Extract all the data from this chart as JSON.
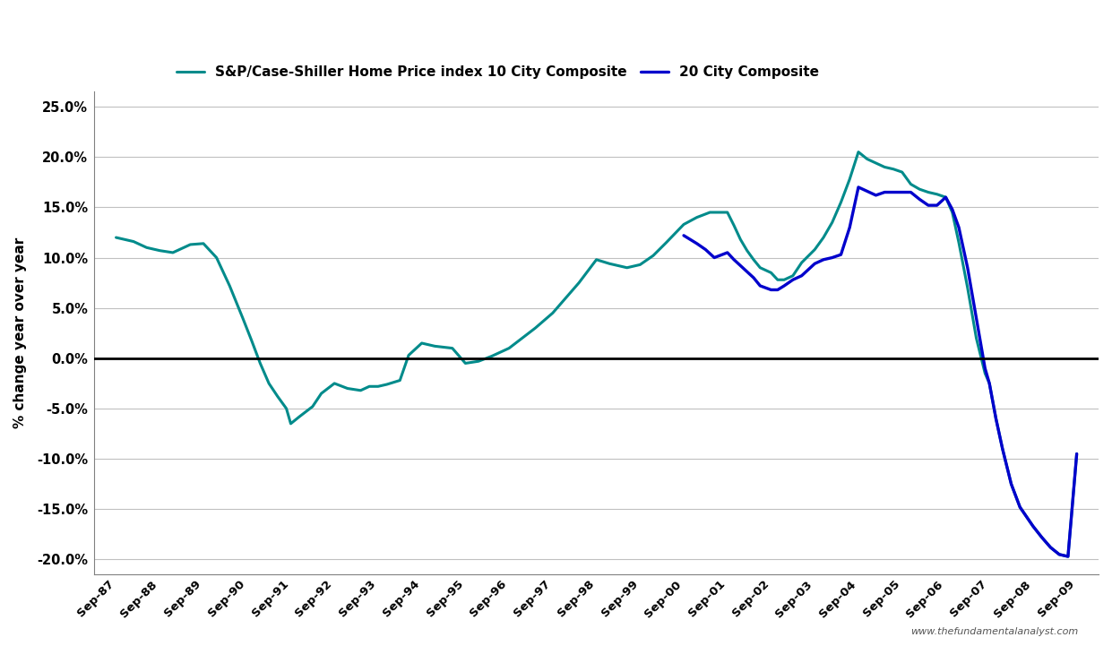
{
  "legend_label_10": "S&P/Case-Shiller Home Price index 10 City Composite",
  "legend_label_20": "20 City Composite",
  "ylabel": "% change year over year",
  "watermark": "www.thefundamentalanalyst.com",
  "color_10city": "#008B8B",
  "color_20city": "#0000CC",
  "color_zeroline": "#000000",
  "background_color": "#FFFFFF",
  "ylim": [
    -0.215,
    0.265
  ],
  "yticks": [
    -0.2,
    -0.15,
    -0.1,
    -0.05,
    0.0,
    0.05,
    0.1,
    0.15,
    0.2,
    0.25
  ],
  "x_labels": [
    "Sep-87",
    "Sep-88",
    "Sep-89",
    "Sep-90",
    "Sep-91",
    "Sep-92",
    "Sep-93",
    "Sep-94",
    "Sep-95",
    "Sep-96",
    "Sep-97",
    "Sep-98",
    "Sep-99",
    "Sep-00",
    "Sep-01",
    "Sep-02",
    "Sep-03",
    "Sep-04",
    "Sep-05",
    "Sep-06",
    "Sep-07",
    "Sep-08",
    "Sep-09"
  ],
  "x10": [
    0,
    0.4,
    0.7,
    1.0,
    1.3,
    1.7,
    2.0,
    2.3,
    2.6,
    2.9,
    3.1,
    3.3,
    3.5,
    3.7,
    3.9,
    4.0,
    4.2,
    4.5,
    4.7,
    5.0,
    5.3,
    5.6,
    5.8,
    6.0,
    6.2,
    6.5,
    6.7,
    7.0,
    7.3,
    7.7,
    8.0,
    8.3,
    8.6,
    9.0,
    9.3,
    9.6,
    10.0,
    10.3,
    10.6,
    11.0,
    11.3,
    11.7,
    12.0,
    12.3,
    12.6,
    13.0,
    13.3,
    13.6,
    14.0,
    14.15,
    14.3,
    14.45,
    14.6,
    14.75,
    15.0,
    15.15,
    15.3,
    15.5,
    15.7,
    16.0,
    16.2,
    16.4,
    16.6,
    16.8,
    17.0,
    17.2,
    17.4,
    17.6,
    17.8,
    18.0,
    18.2,
    18.4,
    18.6,
    18.8,
    19.0,
    19.15,
    19.3,
    19.5,
    19.7,
    19.9,
    20.0,
    20.15,
    20.3,
    20.5,
    20.7,
    21.0,
    21.2,
    21.4,
    21.6,
    21.8,
    22.0
  ],
  "y10": [
    0.12,
    0.116,
    0.11,
    0.107,
    0.105,
    0.113,
    0.114,
    0.1,
    0.072,
    0.04,
    0.018,
    -0.005,
    -0.025,
    -0.038,
    -0.05,
    -0.065,
    -0.058,
    -0.048,
    -0.035,
    -0.025,
    -0.03,
    -0.032,
    -0.028,
    -0.028,
    -0.026,
    -0.022,
    0.003,
    0.015,
    0.012,
    0.01,
    -0.005,
    -0.003,
    0.002,
    0.01,
    0.02,
    0.03,
    0.045,
    0.06,
    0.075,
    0.098,
    0.094,
    0.09,
    0.093,
    0.102,
    0.115,
    0.133,
    0.14,
    0.145,
    0.145,
    0.132,
    0.118,
    0.107,
    0.098,
    0.09,
    0.085,
    0.078,
    0.078,
    0.082,
    0.095,
    0.108,
    0.12,
    0.135,
    0.155,
    0.178,
    0.205,
    0.198,
    0.194,
    0.19,
    0.188,
    0.185,
    0.173,
    0.168,
    0.165,
    0.163,
    0.16,
    0.145,
    0.115,
    0.07,
    0.02,
    -0.015,
    -0.025,
    -0.06,
    -0.09,
    -0.125,
    -0.148,
    -0.167,
    -0.178,
    -0.188,
    -0.195,
    -0.197,
    -0.095
  ],
  "x20": [
    13.0,
    13.15,
    13.3,
    13.5,
    13.7,
    14.0,
    14.15,
    14.3,
    14.45,
    14.6,
    14.75,
    15.0,
    15.15,
    15.3,
    15.5,
    15.7,
    16.0,
    16.2,
    16.4,
    16.6,
    16.8,
    17.0,
    17.2,
    17.4,
    17.6,
    17.8,
    18.0,
    18.2,
    18.4,
    18.6,
    18.8,
    19.0,
    19.15,
    19.3,
    19.5,
    19.7,
    19.9,
    20.0,
    20.15,
    20.3,
    20.5,
    20.7,
    21.0,
    21.2,
    21.4,
    21.6,
    21.8,
    22.0
  ],
  "y20": [
    0.122,
    0.118,
    0.114,
    0.108,
    0.1,
    0.105,
    0.098,
    0.092,
    0.086,
    0.08,
    0.072,
    0.068,
    0.068,
    0.072,
    0.078,
    0.082,
    0.094,
    0.098,
    0.1,
    0.103,
    0.13,
    0.17,
    0.166,
    0.162,
    0.165,
    0.165,
    0.165,
    0.165,
    0.158,
    0.152,
    0.152,
    0.16,
    0.148,
    0.13,
    0.09,
    0.04,
    -0.01,
    -0.025,
    -0.06,
    -0.09,
    -0.125,
    -0.148,
    -0.167,
    -0.178,
    -0.188,
    -0.195,
    -0.197,
    -0.095
  ]
}
